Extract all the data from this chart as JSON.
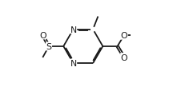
{
  "bg_color": "#ffffff",
  "line_color": "#1a1a1a",
  "line_width": 1.3,
  "font_size": 7.8,
  "figsize": [
    2.16,
    1.15
  ],
  "dpi": 100,
  "xlim": [
    0.05,
    0.98
  ],
  "ylim": [
    0.1,
    0.92
  ]
}
